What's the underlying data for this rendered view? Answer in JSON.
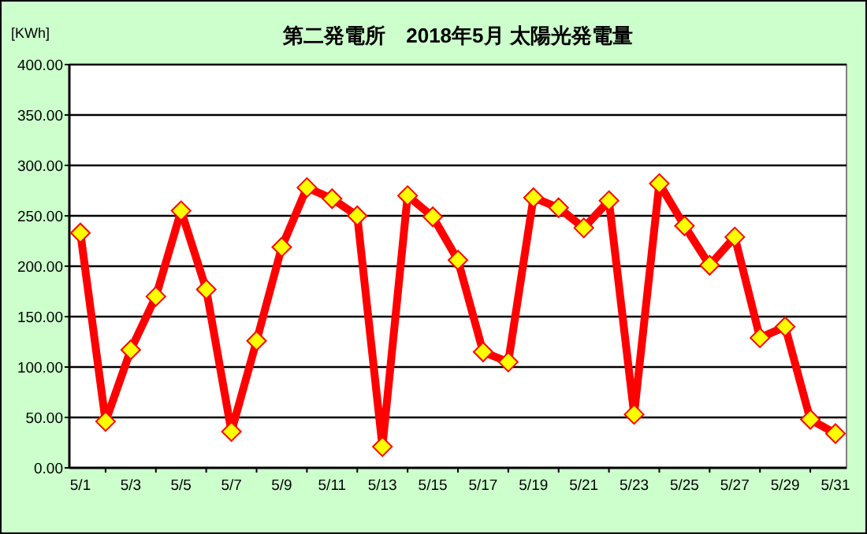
{
  "chart_data": {
    "type": "line",
    "title": "第二発電所　2018年5月 太陽光発電量",
    "ylabel": "[KWh]",
    "categories": [
      "5/1",
      null,
      "5/3",
      null,
      "5/5",
      null,
      "5/7",
      null,
      "5/9",
      null,
      "5/11",
      null,
      "5/13",
      null,
      "5/15",
      null,
      "5/17",
      null,
      "5/19",
      null,
      "5/21",
      null,
      "5/23",
      null,
      "5/25",
      null,
      "5/27",
      null,
      "5/29",
      null,
      "5/31"
    ],
    "series": [
      {
        "color": "#ff0000",
        "values": [
          233,
          46,
          117,
          170,
          255,
          177,
          36,
          126,
          219,
          278,
          267,
          250,
          21,
          270,
          249,
          206,
          115,
          105,
          268,
          258,
          238,
          265,
          53,
          282,
          240,
          201,
          229,
          129,
          140,
          48,
          34
        ]
      }
    ],
    "ylim": [
      0,
      400
    ],
    "yticks": [
      {
        "value": 0,
        "label": "0.00"
      },
      {
        "value": 50,
        "label": "50.00"
      },
      {
        "value": 100,
        "label": "100.00"
      },
      {
        "value": 150,
        "label": "150.00"
      },
      {
        "value": 200,
        "label": "200.00"
      },
      {
        "value": 250,
        "label": "250.00"
      },
      {
        "value": 300,
        "label": "300.00"
      },
      {
        "value": 350,
        "label": "350.00"
      },
      {
        "value": 400,
        "label": "400.00"
      }
    ],
    "grid": "y",
    "marker": "diamond",
    "line_style": "solid"
  }
}
